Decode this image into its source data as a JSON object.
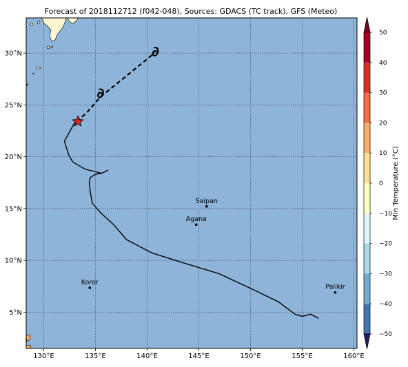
{
  "title": "Forecast of 2018112712 (f042-048), Sources: GDACS (TC track), GFS (Meteo)",
  "map": {
    "lon_range": [
      128.3,
      160.3
    ],
    "lat_range": [
      1.5,
      33.4
    ],
    "ocean_color": "#8fb4d9",
    "land_color": "#fdf5d2",
    "x_ticks": [
      {
        "value": 130,
        "label": "130°E"
      },
      {
        "value": 135,
        "label": "135°E"
      },
      {
        "value": 140,
        "label": "140°E"
      },
      {
        "value": 145,
        "label": "145°E"
      },
      {
        "value": 150,
        "label": "150°E"
      },
      {
        "value": 155,
        "label": "155°E"
      },
      {
        "value": 160,
        "label": "160°E"
      }
    ],
    "y_ticks": [
      {
        "value": 5,
        "label": "5°N"
      },
      {
        "value": 10,
        "label": "10°N"
      },
      {
        "value": 15,
        "label": "15°N"
      },
      {
        "value": 20,
        "label": "20°N"
      },
      {
        "value": 25,
        "label": "25°N"
      },
      {
        "value": 30,
        "label": "30°N"
      }
    ],
    "grid": true
  },
  "cities": [
    {
      "name": "Saipan",
      "lon": 145.75,
      "lat": 15.2
    },
    {
      "name": "Agana",
      "lon": 144.75,
      "lat": 13.45
    },
    {
      "name": "Koror",
      "lon": 134.45,
      "lat": 7.35
    },
    {
      "name": "Palikir",
      "lon": 158.2,
      "lat": 6.9
    }
  ],
  "track_observed": [
    [
      156.6,
      4.4
    ],
    [
      155.8,
      4.8
    ],
    [
      155.0,
      4.6
    ],
    [
      154.3,
      4.8
    ],
    [
      152.7,
      6.0
    ],
    [
      150.0,
      7.3
    ],
    [
      147.0,
      8.7
    ],
    [
      144.0,
      9.6
    ],
    [
      140.5,
      10.7
    ],
    [
      138.0,
      12.0
    ],
    [
      136.8,
      13.4
    ],
    [
      135.5,
      14.6
    ],
    [
      134.7,
      15.5
    ],
    [
      134.5,
      16.6
    ],
    [
      134.4,
      17.5
    ],
    [
      134.5,
      18.0
    ],
    [
      135.0,
      18.3
    ],
    [
      135.6,
      18.4
    ],
    [
      136.2,
      18.7
    ],
    [
      135.6,
      18.4
    ],
    [
      134.0,
      18.8
    ],
    [
      132.8,
      19.5
    ],
    [
      132.4,
      20.2
    ],
    [
      132.0,
      21.5
    ],
    [
      132.6,
      22.6
    ],
    [
      133.0,
      23.3
    ]
  ],
  "track_forecast": [
    [
      133.2,
      23.4
    ],
    [
      134.2,
      24.3
    ],
    [
      135.5,
      25.8
    ],
    [
      137.5,
      27.4
    ],
    [
      140.7,
      30.0
    ]
  ],
  "storm_current": {
    "lon": 133.3,
    "lat": 23.4,
    "color": "#e8281f"
  },
  "forecast_symbols": [
    {
      "lon": 135.5,
      "lat": 26.1,
      "glyph": "∂"
    },
    {
      "lon": 140.8,
      "lat": 30.1,
      "glyph": "∂"
    }
  ],
  "colorbar": {
    "label": "Min Temperature (°C)",
    "ticks": [
      "50",
      "40",
      "30",
      "20",
      "10",
      "0",
      "−10",
      "−20",
      "−30",
      "−40",
      "−50"
    ],
    "colors": [
      "#a50026",
      "#d73027",
      "#f46d43",
      "#fdae61",
      "#fee090",
      "#ffffbf",
      "#e0f3f8",
      "#abd9e9",
      "#74add1",
      "#4575b4",
      "#313695"
    ],
    "top_extend_color": "#7a0018",
    "bottom_extend_color": "#1c2067"
  }
}
